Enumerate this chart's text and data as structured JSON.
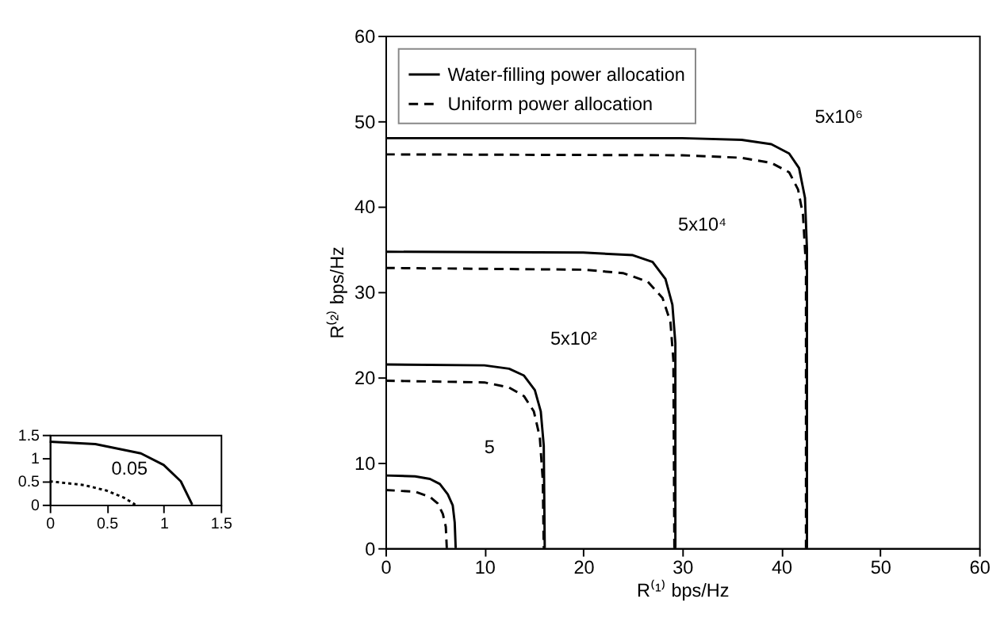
{
  "chart_data": [
    {
      "type": "line",
      "xlim": [
        0,
        1.5
      ],
      "ylim": [
        0,
        1.5
      ],
      "xticks": [
        0,
        0.5,
        1,
        1.5
      ],
      "yticks": [
        0,
        0.5,
        1,
        1.5
      ],
      "grid": false,
      "legend": false,
      "annotations": [
        {
          "text": "0.05",
          "x": 1.0,
          "y": 0.85
        }
      ],
      "series": [
        {
          "color": "#000000",
          "line_style": "solid",
          "x": [
            0,
            0.4,
            0.8,
            1.0,
            1.15,
            1.25
          ],
          "values": [
            1.35,
            1.3,
            1.1,
            0.85,
            0.5,
            0
          ]
        },
        {
          "color": "#000000",
          "line_style": "dotted",
          "x": [
            0,
            0.3,
            0.5,
            0.65,
            0.75
          ],
          "values": [
            0.5,
            0.42,
            0.3,
            0.15,
            0
          ]
        }
      ]
    },
    {
      "type": "line",
      "xlabel": "R⁽¹⁾ bps/Hz",
      "ylabel": "R⁽²⁾ bps/Hz",
      "xlim": [
        0,
        60
      ],
      "ylim": [
        0,
        60
      ],
      "xticks": [
        0,
        10,
        20,
        30,
        40,
        50,
        60
      ],
      "yticks": [
        0,
        10,
        20,
        30,
        40,
        50,
        60
      ],
      "grid": false,
      "legend": "top left",
      "annotations": [
        {
          "text": "5",
          "x": 5.5,
          "y": 7.5
        },
        {
          "text": "5x10²",
          "x": 14,
          "y": 20.2
        },
        {
          "text": "5x10⁴",
          "x": 27,
          "y": 33.5
        },
        {
          "text": "5x10⁶",
          "x": 40.8,
          "y": 46.2
        }
      ],
      "series": [
        {
          "name": "Water-filling power allocation",
          "color": "#000000",
          "line_style": "solid",
          "x": [
            0,
            3,
            4.5,
            5.5,
            6.3,
            6.8,
            7,
            7.1
          ],
          "values": [
            8.5,
            8.4,
            8.1,
            7.5,
            6.3,
            5,
            3,
            0
          ]
        },
        {
          "name": "Uniform power allocation",
          "color": "#000000",
          "line_style": "dashed",
          "x": [
            0,
            3,
            4.5,
            5.3,
            5.8,
            6.1,
            6.2
          ],
          "values": [
            6.8,
            6.6,
            6,
            5.2,
            4,
            2.5,
            0
          ]
        },
        {
          "color": "#000000",
          "line_style": "solid",
          "x": [
            0,
            10,
            12.5,
            14,
            15.1,
            15.7,
            16,
            16.1
          ],
          "values": [
            21.5,
            21.4,
            21,
            20.2,
            18.5,
            16,
            12,
            0
          ]
        },
        {
          "color": "#000000",
          "line_style": "dashed",
          "x": [
            0,
            10,
            12.5,
            14,
            15,
            15.6,
            15.9,
            16
          ],
          "values": [
            19.6,
            19.4,
            18.8,
            17.8,
            16,
            13,
            8,
            0
          ]
        },
        {
          "color": "#000000",
          "line_style": "solid",
          "x": [
            0,
            20,
            25,
            27,
            28.3,
            29,
            29.3,
            29.3
          ],
          "values": [
            34.7,
            34.6,
            34.3,
            33.5,
            31.5,
            28.5,
            24,
            0
          ]
        },
        {
          "color": "#000000",
          "line_style": "dashed",
          "x": [
            0,
            20,
            24,
            26.5,
            28,
            28.8,
            29.1,
            29.2
          ],
          "values": [
            32.8,
            32.6,
            32.2,
            31.2,
            29.3,
            26.5,
            22,
            0
          ]
        },
        {
          "color": "#000000",
          "line_style": "solid",
          "x": [
            0,
            30,
            36,
            39,
            40.8,
            41.8,
            42.4,
            42.6,
            42.6
          ],
          "values": [
            48,
            48,
            47.8,
            47.3,
            46.2,
            44.5,
            41,
            35,
            0
          ]
        },
        {
          "color": "#000000",
          "line_style": "dashed",
          "x": [
            0,
            30,
            36,
            39,
            40.8,
            41.7,
            42.2,
            42.5,
            42.5
          ],
          "values": [
            46.1,
            46,
            45.7,
            45.1,
            44,
            42,
            39,
            33,
            0
          ]
        }
      ]
    }
  ]
}
